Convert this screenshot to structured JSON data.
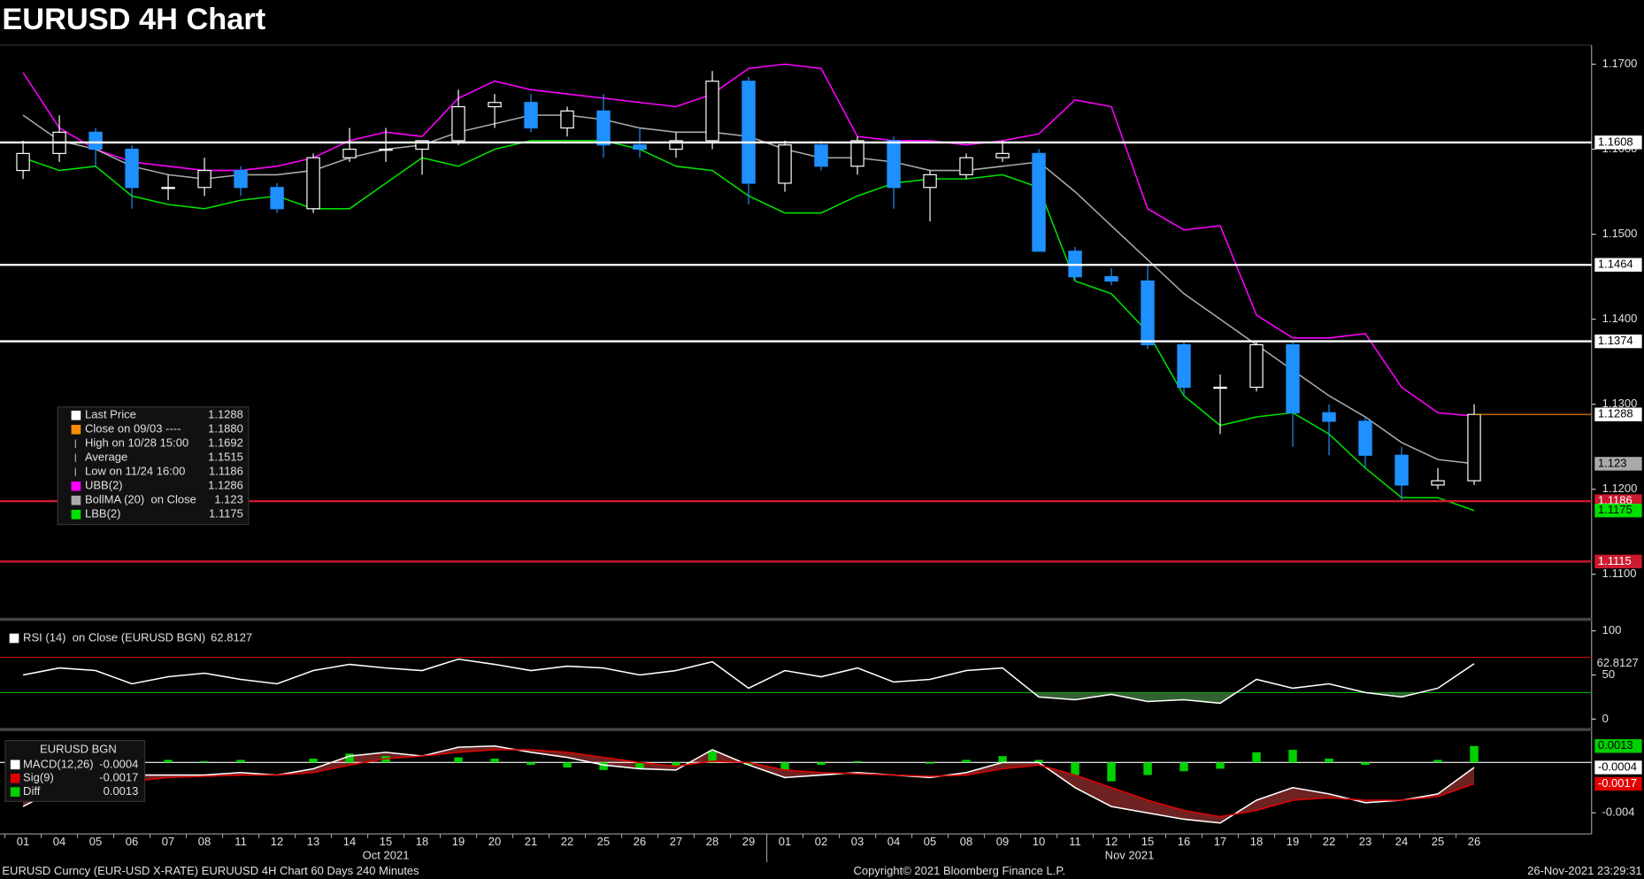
{
  "title": "EURUSD 4H Chart",
  "footer": {
    "left": "EURUSD Curncy (EUR-USD X-RATE) EURUUSD 4H Chart 60 Days 240 Minutes",
    "center": "Copyright© 2021 Bloomberg Finance L.P.",
    "right": "26-Nov-2021 23:29:31"
  },
  "chart_data": [
    {
      "type": "candlestick",
      "categories": [
        "01",
        "04",
        "05",
        "06",
        "07",
        "08",
        "11",
        "12",
        "13",
        "14",
        "15",
        "18",
        "19",
        "20",
        "21",
        "22",
        "25",
        "26",
        "27",
        "28",
        "29",
        "01",
        "02",
        "03",
        "04",
        "05",
        "08",
        "09",
        "10",
        "11",
        "12",
        "15",
        "16",
        "17",
        "18",
        "19",
        "22",
        "23",
        "24",
        "25",
        "26"
      ],
      "months": [
        "Oct 2021",
        "Nov 2021"
      ],
      "open": [
        1.1575,
        1.1595,
        1.162,
        1.16,
        1.1555,
        1.1555,
        1.1575,
        1.1555,
        1.153,
        1.159,
        1.16,
        1.16,
        1.161,
        1.165,
        1.1655,
        1.1625,
        1.1645,
        1.1605,
        1.16,
        1.161,
        1.168,
        1.156,
        1.1605,
        1.158,
        1.161,
        1.1555,
        1.157,
        1.159,
        1.1595,
        1.148,
        1.145,
        1.1445,
        1.137,
        1.132,
        1.132,
        1.137,
        1.129,
        1.128,
        1.124,
        1.1205,
        1.121
      ],
      "high": [
        1.161,
        1.164,
        1.1625,
        1.1605,
        1.157,
        1.159,
        1.158,
        1.156,
        1.1595,
        1.1625,
        1.1625,
        1.161,
        1.167,
        1.1665,
        1.1665,
        1.165,
        1.1665,
        1.1625,
        1.162,
        1.1692,
        1.1685,
        1.161,
        1.161,
        1.1615,
        1.1615,
        1.1575,
        1.1595,
        1.161,
        1.16,
        1.1485,
        1.146,
        1.1465,
        1.1375,
        1.1335,
        1.1375,
        1.1375,
        1.13,
        1.1285,
        1.125,
        1.1225,
        1.13
      ],
      "low": [
        1.1565,
        1.1585,
        1.158,
        1.153,
        1.154,
        1.1545,
        1.1545,
        1.1525,
        1.1525,
        1.1585,
        1.1585,
        1.157,
        1.1605,
        1.1625,
        1.162,
        1.1615,
        1.159,
        1.159,
        1.159,
        1.16,
        1.1535,
        1.155,
        1.1575,
        1.157,
        1.153,
        1.1515,
        1.1565,
        1.1585,
        1.148,
        1.1445,
        1.144,
        1.1365,
        1.131,
        1.1265,
        1.1315,
        1.125,
        1.124,
        1.1225,
        1.1186,
        1.12,
        1.1205
      ],
      "close": [
        1.1595,
        1.162,
        1.16,
        1.1555,
        1.1555,
        1.1575,
        1.1555,
        1.153,
        1.159,
        1.16,
        1.16,
        1.161,
        1.165,
        1.1655,
        1.1625,
        1.1645,
        1.1605,
        1.16,
        1.161,
        1.168,
        1.156,
        1.1605,
        1.158,
        1.161,
        1.1555,
        1.157,
        1.159,
        1.1595,
        1.148,
        1.145,
        1.1445,
        1.137,
        1.132,
        1.132,
        1.137,
        1.129,
        1.128,
        1.124,
        1.1205,
        1.121,
        1.1288
      ],
      "up_color": "#ffffff",
      "down_color": "#1e90ff",
      "last_price_color": "#ff8c00",
      "series": [
        {
          "name": "UBB(2)",
          "color": "#ff00ff",
          "values": [
            1.169,
            1.1625,
            1.16,
            1.1585,
            1.158,
            1.1575,
            1.1575,
            1.158,
            1.159,
            1.161,
            1.162,
            1.1615,
            1.166,
            1.168,
            1.167,
            1.1665,
            1.166,
            1.1655,
            1.165,
            1.1665,
            1.1695,
            1.17,
            1.1695,
            1.1615,
            1.161,
            1.161,
            1.1605,
            1.161,
            1.1618,
            1.1658,
            1.165,
            1.153,
            1.1505,
            1.151,
            1.1405,
            1.1378,
            1.1378,
            1.1383,
            1.132,
            1.129,
            1.1286
          ]
        },
        {
          "name": "BollMA (20)  on Close",
          "color": "#aaaaaa",
          "label_last": true,
          "values": [
            1.164,
            1.161,
            1.16,
            1.158,
            1.157,
            1.1565,
            1.157,
            1.157,
            1.1575,
            1.159,
            1.16,
            1.1605,
            1.162,
            1.163,
            1.164,
            1.164,
            1.1635,
            1.1625,
            1.162,
            1.162,
            1.1615,
            1.16,
            1.159,
            1.159,
            1.1585,
            1.1575,
            1.1575,
            1.158,
            1.1585,
            1.155,
            1.151,
            1.147,
            1.143,
            1.14,
            1.137,
            1.134,
            1.131,
            1.1285,
            1.1255,
            1.1235,
            1.123
          ]
        },
        {
          "name": "LBB(2)",
          "color": "#00e000",
          "label_last": true,
          "values": [
            1.159,
            1.1575,
            1.158,
            1.1545,
            1.1535,
            1.153,
            1.154,
            1.1545,
            1.153,
            1.153,
            1.156,
            1.159,
            1.158,
            1.16,
            1.161,
            1.161,
            1.161,
            1.16,
            1.158,
            1.1575,
            1.1545,
            1.1525,
            1.1525,
            1.1545,
            1.156,
            1.1565,
            1.1565,
            1.157,
            1.1555,
            1.1445,
            1.143,
            1.1385,
            1.131,
            1.1275,
            1.1285,
            1.129,
            1.1265,
            1.1225,
            1.119,
            1.119,
            1.1175
          ]
        }
      ],
      "levels": [
        {
          "value": 1.1608,
          "color": "#ffffff"
        },
        {
          "value": 1.1464,
          "color": "#ffffff"
        },
        {
          "value": 1.1374,
          "color": "#ffffff"
        },
        {
          "value": 1.1186,
          "color": "#cc1a2e"
        },
        {
          "value": 1.1115,
          "color": "#cc1a2e"
        }
      ],
      "ylim": [
        1.105,
        1.172
      ],
      "yticks": [
        {
          "value": 1.11,
          "label": "1.1100"
        },
        {
          "value": 1.12,
          "label": "1.1200"
        },
        {
          "value": 1.13,
          "label": "1.1300"
        },
        {
          "value": 1.14,
          "label": "1.1400"
        },
        {
          "value": 1.15,
          "label": "1.1500"
        },
        {
          "value": 1.16,
          "label": "1.1600"
        },
        {
          "value": 1.17,
          "label": "1.1700"
        }
      ],
      "stats": [
        {
          "name": "Last Price",
          "value": 1.1288,
          "color": "#ffffff"
        },
        {
          "name": "Close on 09/03 ----",
          "value": 1.188,
          "label": "1.1880",
          "color": "#ff8c00"
        },
        {
          "name": "High on 10/28 15:00",
          "value": 1.1692
        },
        {
          "name": "Average",
          "value": 1.1515
        },
        {
          "name": "Low on 11/24 16:00",
          "value": 1.1186
        }
      ]
    },
    {
      "type": "line",
      "series": [
        {
          "name": "RSI (14)  on Close (EURUSD BGN)",
          "color": "#ffffff",
          "values": [
            50,
            58,
            55,
            40,
            48,
            52,
            45,
            40,
            55,
            62,
            58,
            55,
            68,
            62,
            55,
            60,
            58,
            50,
            55,
            65,
            35,
            55,
            48,
            58,
            42,
            45,
            55,
            58,
            25,
            22,
            28,
            20,
            22,
            18,
            45,
            35,
            40,
            30,
            25,
            35,
            62.8127
          ]
        }
      ],
      "levels": [
        {
          "value": 70,
          "color": "#cc0000"
        },
        {
          "value": 30,
          "color": "#00aa00"
        }
      ],
      "ylim": [
        -10,
        110
      ],
      "yticks": [
        0,
        50,
        100
      ]
    },
    {
      "type": "line",
      "title": "EURUSD BGN",
      "series": [
        {
          "name": "MACD(12,26)",
          "color": "#ffffff",
          "values": [
            -0.0035,
            -0.002,
            -0.0015,
            -0.001,
            -0.001,
            -0.001,
            -0.0008,
            -0.001,
            -0.0005,
            0.0005,
            0.0008,
            0.0005,
            0.0012,
            0.0013,
            0.0008,
            0.0004,
            -0.0002,
            -0.0005,
            -0.0006,
            0.001,
            -0.0002,
            -0.0012,
            -0.001,
            -0.0008,
            -0.001,
            -0.0012,
            -0.0008,
            0,
            0,
            -0.002,
            -0.0035,
            -0.004,
            -0.0045,
            -0.0048,
            -0.003,
            -0.002,
            -0.0025,
            -0.0032,
            -0.003,
            -0.0025,
            -0.0004
          ]
        },
        {
          "name": "Sig(9)",
          "color": "#e00000",
          "values": [
            -0.003,
            -0.0025,
            -0.002,
            -0.0015,
            -0.0012,
            -0.0011,
            -0.001,
            -0.001,
            -0.0008,
            -0.0002,
            0.0003,
            0.0005,
            0.0008,
            0.001,
            0.001,
            0.0008,
            0.0004,
            0,
            -0.0003,
            0.0001,
            0,
            -0.0006,
            -0.0008,
            -0.0009,
            -0.001,
            -0.0011,
            -0.001,
            -0.0005,
            -0.0002,
            -0.001,
            -0.002,
            -0.003,
            -0.0038,
            -0.0043,
            -0.0038,
            -0.003,
            -0.0028,
            -0.003,
            -0.003,
            -0.0027,
            -0.0017
          ]
        },
        {
          "name": "Diff",
          "color": "#00d000",
          "style": "bar",
          "values": [
            -0.0005,
            0.0005,
            0.0005,
            0.0005,
            0.0002,
            0.0001,
            0.0002,
            0,
            0.0003,
            0.0007,
            0.0005,
            0,
            0.0004,
            0.0003,
            -0.0002,
            -0.0004,
            -0.0006,
            -0.0005,
            -0.0003,
            0.0009,
            -0.0002,
            -0.0006,
            -0.0002,
            0.0001,
            0,
            -0.0001,
            0.0002,
            0.0005,
            0.0002,
            -0.001,
            -0.0015,
            -0.001,
            -0.0007,
            -0.0005,
            0.0008,
            0.001,
            0.0003,
            -0.0002,
            0,
            0.0002,
            0.0013
          ]
        }
      ],
      "ylim": [
        -0.0055,
        0.0024
      ],
      "yticks": [
        -0.004
      ]
    }
  ]
}
